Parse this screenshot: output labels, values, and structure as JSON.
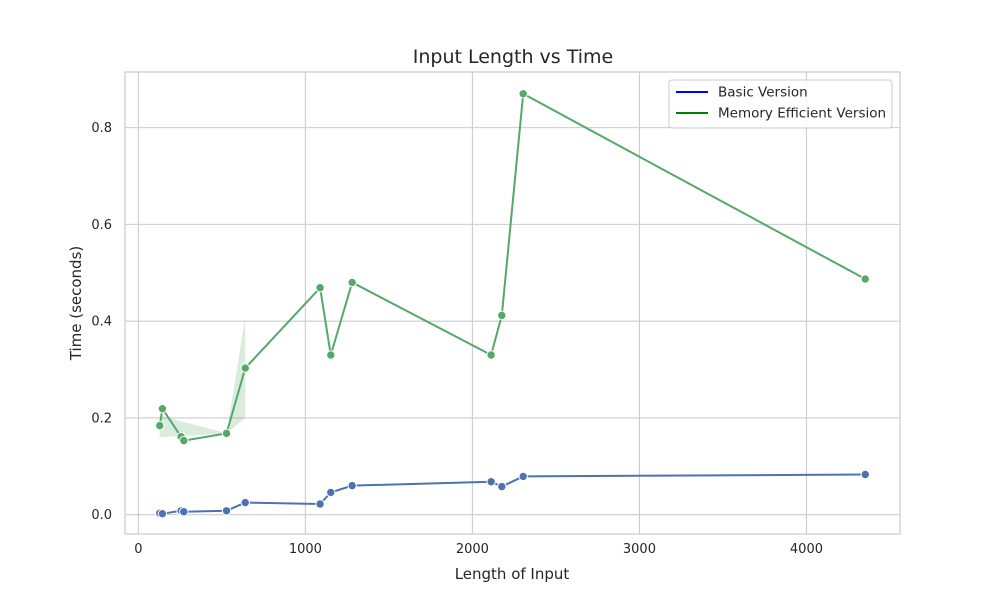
{
  "chart_data": {
    "type": "line",
    "title": "Input Length vs Time",
    "xlabel": "Length of Input",
    "ylabel": "Time (seconds)",
    "xlim": [
      -80,
      4560
    ],
    "ylim": [
      -0.04,
      0.915
    ],
    "xticks": [
      0,
      1000,
      2000,
      3000,
      4000
    ],
    "yticks": [
      0.0,
      0.2,
      0.4,
      0.6,
      0.8
    ],
    "xtick_labels": [
      "0",
      "1000",
      "2000",
      "3000",
      "4000"
    ],
    "ytick_labels": [
      "0.0",
      "0.2",
      "0.4",
      "0.6",
      "0.8"
    ],
    "grid": true,
    "legend_position": "top-right",
    "legend": [
      {
        "label": "Basic Version",
        "color": "#0000ff"
      },
      {
        "label": "Memory Efficient Version",
        "color": "#008000"
      }
    ],
    "series": [
      {
        "color": "#4c72b0",
        "x": [
          128,
          144,
          256,
          272,
          528,
          640,
          1088,
          1152,
          1280,
          2112,
          2176,
          2304,
          4352
        ],
        "y": [
          0.003,
          0.002,
          0.008,
          0.006,
          0.008,
          0.025,
          0.022,
          0.046,
          0.06,
          0.068,
          0.058,
          0.079,
          0.083
        ]
      },
      {
        "color": "#55a868",
        "x": [
          128,
          144,
          256,
          272,
          528,
          640,
          1088,
          1152,
          1280,
          2112,
          2176,
          2304,
          4352
        ],
        "y": [
          0.184,
          0.219,
          0.161,
          0.153,
          0.168,
          0.303,
          0.469,
          0.33,
          0.48,
          0.33,
          0.412,
          0.87,
          0.487
        ],
        "band": [
          {
            "x": 128,
            "lo": 0.16,
            "hi": 0.205
          },
          {
            "x": 528,
            "lo": 0.168,
            "hi": 0.168
          },
          {
            "x": 640,
            "lo": 0.2,
            "hi": 0.408
          }
        ]
      }
    ]
  }
}
